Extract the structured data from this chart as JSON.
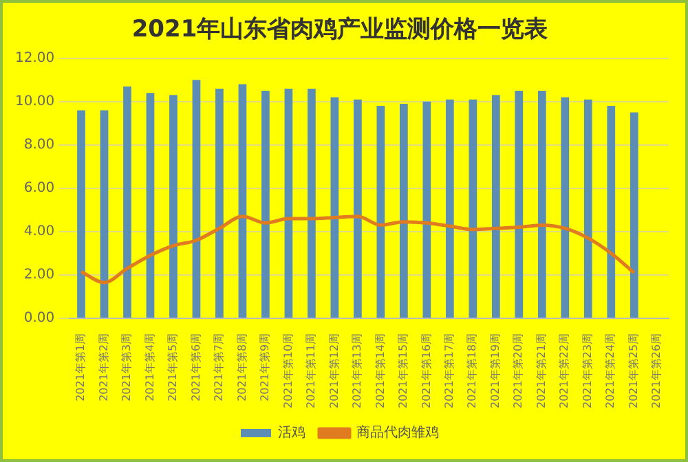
{
  "chart_data": {
    "type": "bar",
    "title": "2021年山东省肉鸡产业监测价格一览表",
    "categories": [
      "2021年第1周",
      "2021年第2周",
      "2021年第3周",
      "2021年第4周",
      "2021年第5周",
      "2021年第6周",
      "2021年第7周",
      "2021年第8周",
      "2021年第9周",
      "2021年第10周",
      "2021年第11周",
      "2021年第12周",
      "2021年第13周",
      "2021年第14周",
      "2021年第15周",
      "2021年第16周",
      "2021年第17周",
      "2021年第18周",
      "2021年第19周",
      "2021年第20周",
      "2021年第21周",
      "2021年第22周",
      "2021年第23周",
      "2021年第24周",
      "2021年第25周",
      "2021年第26周"
    ],
    "series": [
      {
        "name": "活鸡",
        "color": "#5b8db5",
        "values": [
          9.6,
          9.6,
          10.7,
          10.4,
          10.3,
          11.0,
          10.6,
          10.8,
          10.5,
          10.6,
          10.6,
          10.2,
          10.1,
          9.8,
          9.9,
          10.0,
          10.1,
          10.1,
          10.3,
          10.5,
          10.5,
          10.2,
          10.1,
          9.8,
          9.5,
          null
        ]
      },
      {
        "name": "商品代肉雏鸡",
        "type": "line",
        "color": "#e07b20",
        "values": [
          2.15,
          1.65,
          2.3,
          2.9,
          3.35,
          3.6,
          4.15,
          4.7,
          4.4,
          4.6,
          4.6,
          4.65,
          4.7,
          4.3,
          4.45,
          4.4,
          4.25,
          4.1,
          4.15,
          4.2,
          4.3,
          4.15,
          3.7,
          3.0,
          2.1,
          null
        ]
      }
    ],
    "ylim": [
      0,
      12
    ],
    "yticks": [
      {
        "value": 0,
        "label": "0.00"
      },
      {
        "value": 2,
        "label": "2.00"
      },
      {
        "value": 4,
        "label": "4.00"
      },
      {
        "value": 6,
        "label": "6.00"
      },
      {
        "value": 8,
        "label": "8.00"
      },
      {
        "value": 10,
        "label": "10.00"
      },
      {
        "value": 12,
        "label": "12.00"
      }
    ],
    "grid": "y",
    "legend": "bottom",
    "marker": "none",
    "line_style": "solid"
  }
}
